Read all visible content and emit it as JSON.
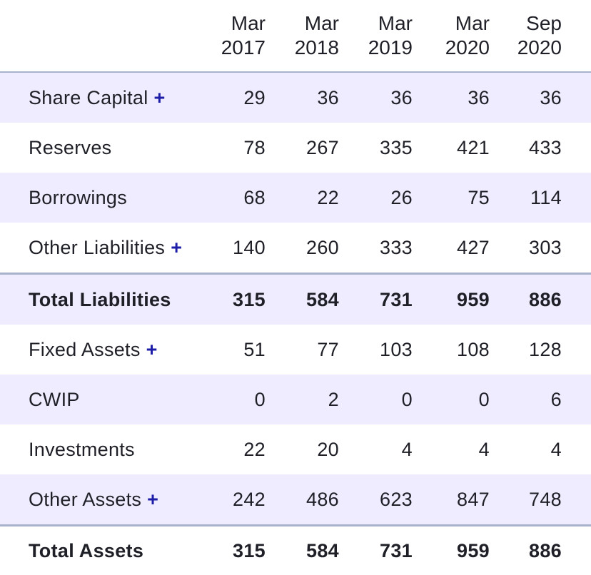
{
  "columns": [
    {
      "line1": "Mar",
      "line2": "2017"
    },
    {
      "line1": "Mar",
      "line2": "2018"
    },
    {
      "line1": "Mar",
      "line2": "2019"
    },
    {
      "line1": "Mar",
      "line2": "2020"
    },
    {
      "line1": "Sep",
      "line2": "2020"
    }
  ],
  "expand_symbol": "+",
  "colors": {
    "row_shade": "#eeecfe",
    "divider": "#a8b2cc",
    "expand_accent": "#1d1da8",
    "text": "#1f2027"
  },
  "rows": [
    {
      "label": "Share Capital",
      "expandable": true,
      "values": [
        "29",
        "36",
        "36",
        "36",
        "36"
      ]
    },
    {
      "label": "Reserves",
      "expandable": false,
      "values": [
        "78",
        "267",
        "335",
        "421",
        "433"
      ]
    },
    {
      "label": "Borrowings",
      "expandable": false,
      "values": [
        "68",
        "22",
        "26",
        "75",
        "114"
      ]
    },
    {
      "label": "Other Liabilities",
      "expandable": true,
      "values": [
        "140",
        "260",
        "333",
        "427",
        "303"
      ]
    },
    {
      "label": "Total Liabilities",
      "expandable": false,
      "values": [
        "315",
        "584",
        "731",
        "959",
        "886"
      ]
    },
    {
      "label": "Fixed Assets",
      "expandable": true,
      "values": [
        "51",
        "77",
        "103",
        "108",
        "128"
      ]
    },
    {
      "label": "CWIP",
      "expandable": false,
      "values": [
        "0",
        "2",
        "0",
        "0",
        "6"
      ]
    },
    {
      "label": "Investments",
      "expandable": false,
      "values": [
        "22",
        "20",
        "4",
        "4",
        "4"
      ]
    },
    {
      "label": "Other Assets",
      "expandable": true,
      "values": [
        "242",
        "486",
        "623",
        "847",
        "748"
      ]
    },
    {
      "label": "Total Assets",
      "expandable": false,
      "values": [
        "315",
        "584",
        "731",
        "959",
        "886"
      ]
    }
  ]
}
